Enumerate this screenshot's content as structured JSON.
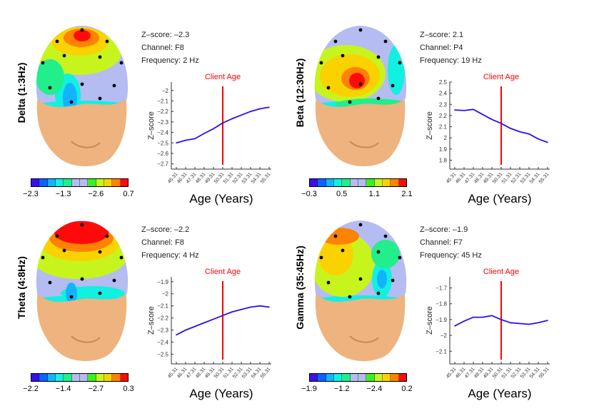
{
  "colorbar_colors": [
    "#3a10f0",
    "#0a64ff",
    "#12b4ff",
    "#12f0e0",
    "#22ee8c",
    "#b4bcf2",
    "#b4bcf2",
    "#3cf020",
    "#c8f41e",
    "#fad200",
    "#ff8200",
    "#ff0a0a"
  ],
  "panels": [
    {
      "band": "Delta (1:3Hz)",
      "zscore_text": "Z–score: –2.3",
      "channel_text": "Channel: F8",
      "frequency_text": "Frequency: 2 Hz",
      "colorbar_labels": [
        "−2.3",
        "−1.3",
        "−2.6",
        "0.7"
      ]
    },
    {
      "band": "Beta (12:30Hz)",
      "zscore_text": "Z–score: 2.1",
      "channel_text": "Channel: P4",
      "frequency_text": "Frequency: 19 Hz",
      "colorbar_labels": [
        "−0.3",
        "0.5",
        "1.1",
        "2.1"
      ]
    },
    {
      "band": "Theta (4:8Hz)",
      "zscore_text": "Z–score: –2.2",
      "channel_text": "Channel: F8",
      "frequency_text": "Frequency: 4 Hz",
      "colorbar_labels": [
        "−2.2",
        "−1.4",
        "−2.7",
        "0.3"
      ]
    },
    {
      "band": "Gamma (35:45Hz)",
      "zscore_text": "Z–score: –1.9",
      "channel_text": "Channel: F7",
      "frequency_text": "Frequency: 45 Hz",
      "colorbar_labels": [
        "−1.9",
        "−1.2",
        "−2.4",
        "0.2"
      ]
    }
  ],
  "chart_data": [
    {
      "type": "line",
      "title": "",
      "xlabel": "Age (Years)",
      "ylabel": "Z–score",
      "annotation": "Client Age",
      "client_age": 50.31,
      "x": [
        45.31,
        46.31,
        47.31,
        48.31,
        49.31,
        50.31,
        51.31,
        52.31,
        53.31,
        54.31,
        55.31
      ],
      "xticklabels": [
        "45.31",
        "46.31",
        "47.31",
        "48.31",
        "49.31",
        "50.31",
        "51.31",
        "52.31",
        "53.31",
        "54.31",
        "55.31"
      ],
      "values": [
        -2.5,
        -2.475,
        -2.46,
        -2.41,
        -2.365,
        -2.31,
        -2.27,
        -2.235,
        -2.2,
        -2.175,
        -2.16
      ],
      "yticks": [
        -2,
        -2.1,
        -2.2,
        -2.3,
        -2.4,
        -2.5,
        -2.6,
        -2.7
      ],
      "yticklabels": [
        "−2",
        "−2.1",
        "−2.2",
        "−2.3",
        "−2.4",
        "−2.5",
        "−2.6",
        "−2.7"
      ],
      "ylim": [
        -2.75,
        -1.92
      ],
      "line_color": "#2a10f0",
      "marker_color": "#ff0000"
    },
    {
      "type": "line",
      "xlabel": "Age (Years)",
      "ylabel": "Z–score",
      "annotation": "Client Age",
      "client_age": 50.31,
      "x": [
        45.31,
        46.31,
        47.31,
        48.31,
        49.31,
        50.31,
        51.31,
        52.31,
        53.31,
        54.31,
        55.31
      ],
      "xticklabels": [
        "45.31",
        "46.31",
        "47.31",
        "48.31",
        "49.31",
        "50.31",
        "51.31",
        "52.31",
        "53.31",
        "54.31",
        "55.31"
      ],
      "values": [
        2.25,
        2.245,
        2.255,
        2.21,
        2.165,
        2.13,
        2.085,
        2.055,
        2.035,
        1.99,
        1.96
      ],
      "yticks": [
        2.5,
        2.4,
        2.3,
        2.2,
        2.1,
        2,
        1.9,
        1.8
      ],
      "yticklabels": [
        "2.5",
        "2.4",
        "2.3",
        "2.2",
        "2.1",
        "2",
        "1.9",
        "1.8"
      ],
      "ylim": [
        1.72,
        2.5
      ],
      "line_color": "#2a10f0",
      "marker_color": "#ff0000"
    },
    {
      "type": "line",
      "xlabel": "Age (Years)",
      "ylabel": "Z–score",
      "annotation": "Client Age",
      "client_age": 50.31,
      "x": [
        45.31,
        46.31,
        47.31,
        48.31,
        49.31,
        50.31,
        51.31,
        52.31,
        53.31,
        54.31,
        55.31
      ],
      "xticklabels": [
        "45.31",
        "46.31",
        "47.31",
        "48.31",
        "49.31",
        "50.31",
        "51.31",
        "52.31",
        "53.31",
        "54.31",
        "55.31"
      ],
      "values": [
        -2.34,
        -2.3,
        -2.27,
        -2.24,
        -2.21,
        -2.18,
        -2.15,
        -2.13,
        -2.11,
        -2.1,
        -2.11
      ],
      "yticks": [
        -1.9,
        -2,
        -2.1,
        -2.2,
        -2.3,
        -2.4,
        -2.5
      ],
      "yticklabels": [
        "−1.9",
        "−2",
        "−2.1",
        "−2.2",
        "−2.3",
        "−2.4",
        "−2.5"
      ],
      "ylim": [
        -2.58,
        -1.86
      ],
      "line_color": "#2a10f0",
      "marker_color": "#ff0000"
    },
    {
      "type": "line",
      "xlabel": "Age (Years)",
      "ylabel": "Z–score",
      "annotation": "Client Age",
      "client_age": 50.31,
      "x": [
        45.31,
        46.31,
        47.31,
        48.31,
        49.31,
        50.31,
        51.31,
        52.31,
        53.31,
        54.31,
        55.31
      ],
      "xticklabels": [
        "45.31",
        "46.31",
        "47.31",
        "48.31",
        "49.31",
        "50.31",
        "51.31",
        "52.31",
        "53.31",
        "54.31",
        "55.31"
      ],
      "values": [
        -1.94,
        -1.91,
        -1.885,
        -1.885,
        -1.875,
        -1.9,
        -1.92,
        -1.925,
        -1.93,
        -1.92,
        -1.905
      ],
      "yticks": [
        -1.7,
        -1.8,
        -1.9,
        -2,
        -2.1
      ],
      "yticklabels": [
        "−1.7",
        "−1.8",
        "−1.9",
        "−2",
        "−2.1"
      ],
      "ylim": [
        -2.18,
        -1.63
      ],
      "line_color": "#2a10f0",
      "marker_color": "#ff0000"
    }
  ]
}
